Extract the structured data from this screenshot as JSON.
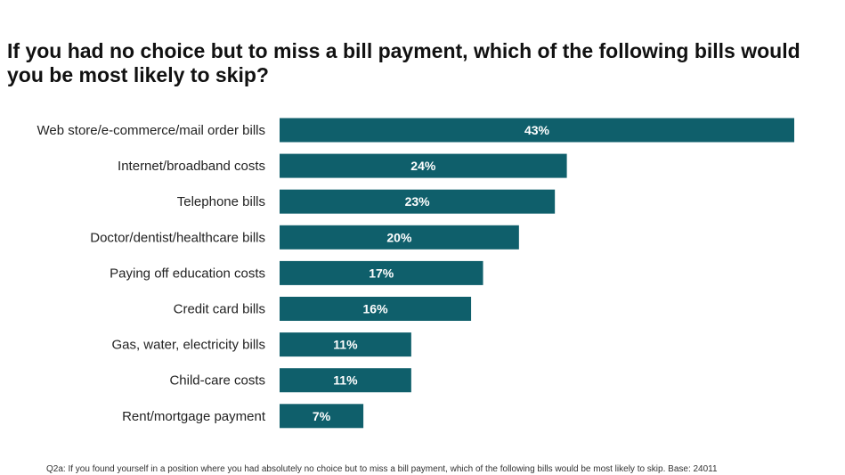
{
  "chart_data": {
    "type": "bar",
    "orientation": "horizontal",
    "title": "If you had no choice but to miss a bill payment, which of the following bills would you be most likely to skip?",
    "categories": [
      "Web store/e-commerce/mail order bills",
      "Internet/broadband costs",
      "Telephone bills",
      "Doctor/dentist/healthcare bills",
      "Paying off education costs",
      "Credit card bills",
      "Gas, water, electricity bills",
      "Child-care costs",
      "Rent/mortgage payment"
    ],
    "values": [
      43,
      24,
      23,
      20,
      17,
      16,
      11,
      11,
      7
    ],
    "value_labels": [
      "43%",
      "24%",
      "23%",
      "20%",
      "17%",
      "16%",
      "11%",
      "11%",
      "7%"
    ],
    "bar_color": "#0f5f6b",
    "grid": false,
    "legend": "none"
  },
  "footnote": "Q2a: If you found yourself in a position where you had absolutely no choice but to miss a bill payment, which of the following bills would be most likely to skip. Base: 24011"
}
